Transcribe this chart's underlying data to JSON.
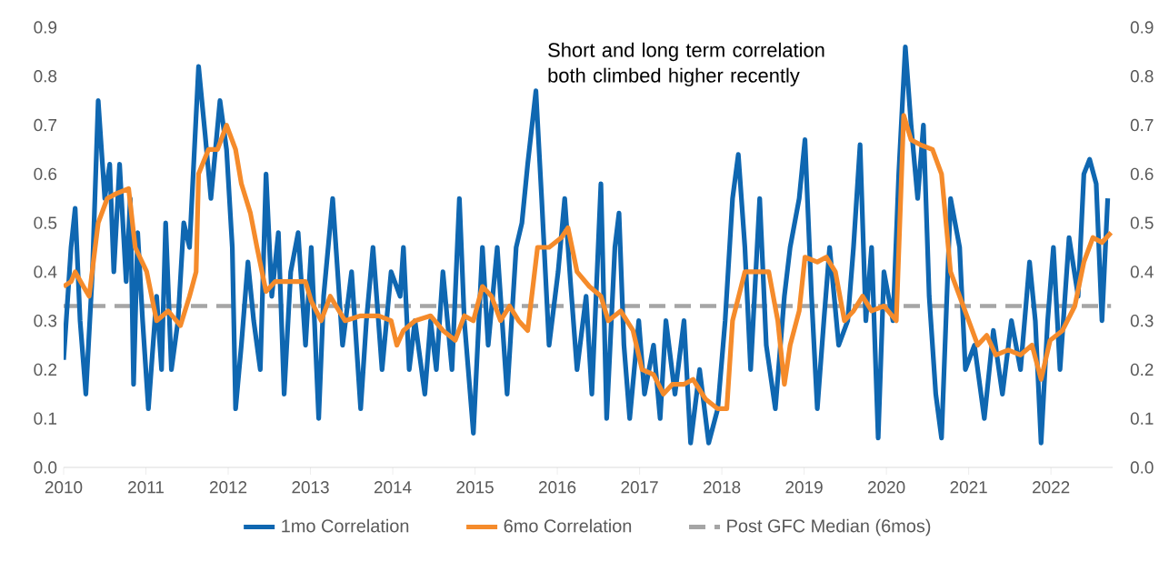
{
  "chart_data": {
    "type": "line",
    "annotations": [
      "Short and long term correlation both climbed higher recently"
    ],
    "xlim": [
      2010,
      2022.75
    ],
    "xticks": [
      2010,
      2011,
      2012,
      2013,
      2014,
      2015,
      2016,
      2017,
      2018,
      2019,
      2020,
      2021,
      2022
    ],
    "ylim": [
      0,
      0.9
    ],
    "yticks": [
      {
        "value": 0,
        "label": "0.0"
      },
      0.1,
      0.2,
      0.3,
      0.4,
      0.5,
      0.6,
      0.7,
      0.8,
      0.9
    ],
    "y2lim": [
      0,
      0.9
    ],
    "y2ticks": [
      {
        "value": 0,
        "label": "0.0"
      },
      0.1,
      0.2,
      0.3,
      0.4,
      0.5,
      0.6,
      0.7,
      0.8,
      0.9
    ],
    "legend": "bottom",
    "series": [
      {
        "name": "1mo Correlation",
        "color": "#0f67b1",
        "x": [
          2010.0,
          2010.09,
          2010.14,
          2010.2,
          2010.27,
          2010.35,
          2010.42,
          2010.5,
          2010.56,
          2010.61,
          2010.68,
          2010.76,
          2010.81,
          2010.85,
          2010.9,
          2010.96,
          2011.03,
          2011.13,
          2011.19,
          2011.24,
          2011.31,
          2011.39,
          2011.46,
          2011.53,
          2011.64,
          2011.72,
          2011.79,
          2011.9,
          2011.98,
          2012.05,
          2012.09,
          2012.16,
          2012.24,
          2012.31,
          2012.39,
          2012.46,
          2012.53,
          2012.61,
          2012.68,
          2012.76,
          2012.85,
          2012.94,
          2013.01,
          2013.1,
          2013.16,
          2013.27,
          2013.39,
          2013.5,
          2013.61,
          2013.68,
          2013.76,
          2013.87,
          2013.98,
          2014.09,
          2014.13,
          2014.2,
          2014.27,
          2014.39,
          2014.46,
          2014.53,
          2014.61,
          2014.72,
          2014.81,
          2014.87,
          2014.98,
          2015.09,
          2015.16,
          2015.27,
          2015.39,
          2015.5,
          2015.57,
          2015.64,
          2015.74,
          2015.81,
          2015.9,
          2016.01,
          2016.09,
          2016.16,
          2016.24,
          2016.35,
          2016.42,
          2016.53,
          2016.6,
          2016.7,
          2016.75,
          2016.81,
          2016.88,
          2016.99,
          2017.06,
          2017.17,
          2017.25,
          2017.32,
          2017.43,
          2017.54,
          2017.62,
          2017.73,
          2017.84,
          2017.95,
          2018.04,
          2018.13,
          2018.2,
          2018.28,
          2018.35,
          2018.46,
          2018.54,
          2018.65,
          2018.76,
          2018.83,
          2018.94,
          2019.01,
          2019.09,
          2019.16,
          2019.24,
          2019.31,
          2019.42,
          2019.53,
          2019.6,
          2019.68,
          2019.75,
          2019.82,
          2019.9,
          2019.97,
          2020.08,
          2020.15,
          2020.23,
          2020.3,
          2020.38,
          2020.45,
          2020.52,
          2020.6,
          2020.67,
          2020.78,
          2020.89,
          2020.96,
          2021.07,
          2021.19,
          2021.3,
          2021.41,
          2021.52,
          2021.63,
          2021.74,
          2021.81,
          2021.88,
          2021.96,
          2022.03,
          2022.11,
          2022.22,
          2022.33,
          2022.4,
          2022.47,
          2022.55,
          2022.62,
          2022.69
        ],
        "values": [
          0.22,
          0.45,
          0.53,
          0.3,
          0.15,
          0.4,
          0.75,
          0.55,
          0.62,
          0.4,
          0.62,
          0.38,
          0.55,
          0.17,
          0.48,
          0.3,
          0.12,
          0.35,
          0.2,
          0.5,
          0.2,
          0.3,
          0.5,
          0.45,
          0.82,
          0.68,
          0.55,
          0.75,
          0.65,
          0.45,
          0.12,
          0.25,
          0.42,
          0.3,
          0.2,
          0.6,
          0.35,
          0.48,
          0.15,
          0.4,
          0.48,
          0.25,
          0.45,
          0.1,
          0.35,
          0.55,
          0.25,
          0.4,
          0.12,
          0.3,
          0.45,
          0.2,
          0.4,
          0.35,
          0.45,
          0.2,
          0.3,
          0.15,
          0.3,
          0.2,
          0.4,
          0.2,
          0.55,
          0.3,
          0.07,
          0.45,
          0.25,
          0.45,
          0.15,
          0.45,
          0.5,
          0.62,
          0.77,
          0.55,
          0.25,
          0.4,
          0.55,
          0.38,
          0.2,
          0.35,
          0.15,
          0.58,
          0.1,
          0.45,
          0.52,
          0.25,
          0.1,
          0.3,
          0.15,
          0.25,
          0.1,
          0.3,
          0.15,
          0.3,
          0.05,
          0.2,
          0.05,
          0.12,
          0.3,
          0.55,
          0.64,
          0.45,
          0.2,
          0.55,
          0.25,
          0.12,
          0.35,
          0.45,
          0.55,
          0.67,
          0.35,
          0.12,
          0.3,
          0.45,
          0.25,
          0.3,
          0.45,
          0.66,
          0.3,
          0.45,
          0.06,
          0.4,
          0.3,
          0.6,
          0.86,
          0.7,
          0.55,
          0.7,
          0.35,
          0.15,
          0.06,
          0.55,
          0.45,
          0.2,
          0.25,
          0.1,
          0.28,
          0.15,
          0.3,
          0.2,
          0.42,
          0.3,
          0.05,
          0.3,
          0.45,
          0.2,
          0.47,
          0.35,
          0.6,
          0.63,
          0.58,
          0.3,
          0.55
        ]
      },
      {
        "name": "6mo Correlation",
        "color": "#f58b2b",
        "x": [
          2010.0,
          2010.09,
          2010.14,
          2010.24,
          2010.31,
          2010.42,
          2010.53,
          2010.64,
          2010.79,
          2010.87,
          2011.01,
          2011.13,
          2011.27,
          2011.42,
          2011.53,
          2011.61,
          2011.64,
          2011.76,
          2011.87,
          2011.98,
          2012.09,
          2012.16,
          2012.27,
          2012.35,
          2012.46,
          2012.57,
          2012.72,
          2012.83,
          2012.94,
          2013.01,
          2013.13,
          2013.24,
          2013.42,
          2013.61,
          2013.83,
          2013.98,
          2014.05,
          2014.13,
          2014.27,
          2014.46,
          2014.61,
          2014.76,
          2014.87,
          2014.98,
          2015.09,
          2015.2,
          2015.31,
          2015.42,
          2015.53,
          2015.64,
          2015.76,
          2015.9,
          2016.05,
          2016.13,
          2016.24,
          2016.39,
          2016.53,
          2016.62,
          2016.77,
          2016.92,
          2017.03,
          2017.17,
          2017.29,
          2017.4,
          2017.54,
          2017.65,
          2017.8,
          2017.95,
          2018.06,
          2018.13,
          2018.28,
          2018.43,
          2018.57,
          2018.68,
          2018.76,
          2018.83,
          2018.94,
          2019.01,
          2019.16,
          2019.27,
          2019.38,
          2019.49,
          2019.6,
          2019.71,
          2019.82,
          2019.97,
          2020.12,
          2020.21,
          2020.3,
          2020.41,
          2020.56,
          2020.67,
          2020.78,
          2020.89,
          2021.0,
          2021.11,
          2021.22,
          2021.33,
          2021.48,
          2021.63,
          2021.77,
          2021.88,
          2021.99,
          2022.14,
          2022.29,
          2022.4,
          2022.51,
          2022.62,
          2022.73
        ],
        "values": [
          0.37,
          0.38,
          0.4,
          0.37,
          0.35,
          0.5,
          0.55,
          0.56,
          0.57,
          0.45,
          0.4,
          0.3,
          0.32,
          0.29,
          0.35,
          0.4,
          0.6,
          0.65,
          0.65,
          0.7,
          0.65,
          0.58,
          0.52,
          0.45,
          0.36,
          0.38,
          0.38,
          0.38,
          0.38,
          0.34,
          0.3,
          0.35,
          0.3,
          0.31,
          0.31,
          0.3,
          0.25,
          0.28,
          0.3,
          0.31,
          0.28,
          0.26,
          0.31,
          0.3,
          0.37,
          0.35,
          0.3,
          0.33,
          0.3,
          0.28,
          0.45,
          0.45,
          0.47,
          0.49,
          0.4,
          0.37,
          0.35,
          0.3,
          0.32,
          0.28,
          0.2,
          0.19,
          0.15,
          0.17,
          0.17,
          0.18,
          0.14,
          0.12,
          0.12,
          0.3,
          0.4,
          0.4,
          0.4,
          0.3,
          0.17,
          0.25,
          0.32,
          0.43,
          0.42,
          0.43,
          0.4,
          0.3,
          0.32,
          0.35,
          0.32,
          0.33,
          0.3,
          0.72,
          0.67,
          0.66,
          0.65,
          0.6,
          0.4,
          0.35,
          0.3,
          0.25,
          0.27,
          0.23,
          0.24,
          0.23,
          0.25,
          0.18,
          0.26,
          0.28,
          0.33,
          0.42,
          0.47,
          0.46,
          0.48
        ]
      },
      {
        "name": "Post GFC Median (6mos)",
        "color": "#a5a5a5",
        "line_style": "dashed",
        "x": [
          2010.0,
          2022.73
        ],
        "values": [
          0.33,
          0.33
        ]
      }
    ]
  }
}
